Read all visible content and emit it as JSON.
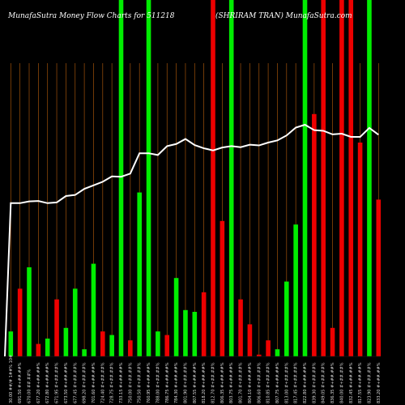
{
  "chart_data": {
    "type": "bar",
    "title": "MunafaSutra  Money Flow  Charts for 511218",
    "title_right": "(SHRIRAM TRAN) MunafaSutra.com",
    "grid": "vertical-lines",
    "bar_color_up": "#00ee00",
    "bar_color_down": "#ee0000",
    "line_color": "#ffffff",
    "grid_color": "#a0520a",
    "ylim": [
      0,
      100
    ],
    "categories": [
      "30.00 ##/# 1##% 10#",
      "691.50 #+##.##%",
      "670.00 ##.##%",
      "677.20 #+##.##%",
      "672.80 #+##.##%",
      "671.95 #+##.##%",
      "673.50 #+##.##%",
      "677.45 #+##.##%",
      "698.20 #+##.##%",
      "701.60 #+##.##%",
      "724.40 #+##.##%",
      "728.75 #+##.##%",
      "733.15 #+##.##%",
      "750.00 #+##.##%",
      "750.50 #+##.##%",
      "760.95 #+##.##%",
      "788.00 #+##.##%",
      "786.75 #+##.##%",
      "784.30 #+##.##%",
      "801.90 #+##.##%",
      "807.55 #+##.##%",
      "818.20 #+##.##%",
      "812.70 #+##.##%",
      "806.35 #+##.##%",
      "803.75 #+##.##%",
      "801.70 #+##.##%",
      "804.10 #+##.##%",
      "806.60 #+##.##%",
      "810.85 #+##.##%",
      "807.75 #+##.##%",
      "813.00 #+##.##%",
      "817.45 #+##.##%",
      "822.80 #+##.##%",
      "839.30 #+##.##%",
      "849.05 #+##.##%",
      "836.35 #+##.##%",
      "840.00 #+##.##%",
      "832.45 #+##.##%",
      "817.55 #+##.##%",
      "823.90 #+##.##%",
      "833.20 #+##.##%"
    ],
    "series": [
      {
        "values": [
          7,
          19,
          25,
          3.5,
          5,
          16,
          8,
          19,
          2,
          26,
          7,
          6,
          100,
          4.5,
          46,
          100,
          7,
          6,
          22,
          13,
          12.5,
          18,
          100,
          38,
          100,
          16,
          9,
          0.5,
          4.5,
          2,
          21,
          37,
          100,
          68,
          100,
          8,
          100,
          100,
          60,
          100,
          44
        ],
        "direction": [
          "up",
          "down",
          "up",
          "down",
          "up",
          "down",
          "up",
          "up",
          "up",
          "up",
          "down",
          "up",
          "up",
          "down",
          "up",
          "up",
          "up",
          "down",
          "up",
          "up",
          "up",
          "down",
          "down",
          "down",
          "up",
          "down",
          "down",
          "down",
          "down",
          "up",
          "up",
          "up",
          "up",
          "down",
          "down",
          "down",
          "down",
          "down",
          "down",
          "up",
          "down"
        ]
      }
    ],
    "line": {
      "values": [
        43,
        43,
        43.5,
        43.6,
        43,
        43.2,
        45,
        45.3,
        47,
        48,
        49,
        50.5,
        50.4,
        51.3,
        57,
        57,
        56.5,
        59,
        59.6,
        61,
        59.3,
        58.4,
        57.8,
        58.6,
        59,
        58.7,
        59.4,
        59.2,
        60,
        60.6,
        62,
        64.2,
        65,
        63.5,
        63.3,
        62.3,
        62.5,
        61.6,
        61.6,
        64.1,
        62.2
      ]
    }
  }
}
